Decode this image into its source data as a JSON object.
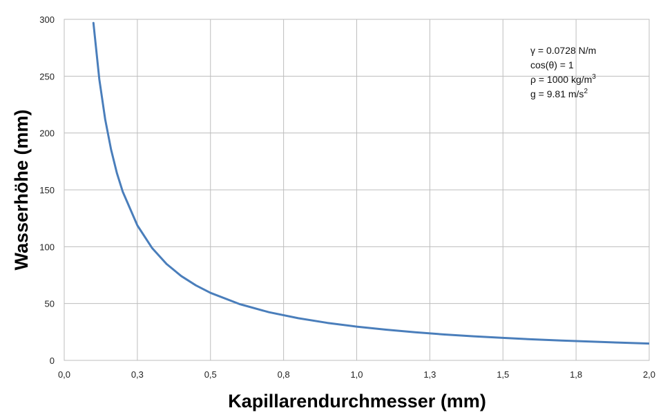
{
  "chart_data": {
    "type": "line",
    "title": "",
    "xlabel": "Kapillarendurchmesser (mm)",
    "ylabel": "Wasserhöhe (mm)",
    "xlim": [
      0,
      2.0
    ],
    "ylim": [
      0,
      300
    ],
    "grid": true,
    "x_ticks": [
      0,
      0.25,
      0.5,
      0.75,
      1.0,
      1.25,
      1.5,
      1.75,
      2.0
    ],
    "x_tick_labels": [
      "0,0",
      "0,3",
      "0,5",
      "0,8",
      "1,0",
      "1,3",
      "1,5",
      "1,8",
      "2,0"
    ],
    "y_ticks": [
      0,
      50,
      100,
      150,
      200,
      250,
      300
    ],
    "y_tick_labels": [
      "0",
      "50",
      "100",
      "150",
      "200",
      "250",
      "300"
    ],
    "series": [
      {
        "color": "#4a7ebb",
        "x": [
          0.1,
          0.12,
          0.14,
          0.16,
          0.18,
          0.2,
          0.25,
          0.3,
          0.35,
          0.4,
          0.45,
          0.5,
          0.6,
          0.7,
          0.8,
          0.9,
          1.0,
          1.1,
          1.2,
          1.3,
          1.4,
          1.5,
          1.6,
          1.7,
          1.8,
          1.9,
          2.0
        ],
        "y": [
          296.8,
          247.3,
          212.0,
          185.5,
          164.9,
          148.4,
          118.7,
          98.9,
          84.8,
          74.2,
          66.0,
          59.4,
          49.5,
          42.4,
          37.1,
          33.0,
          29.7,
          27.0,
          24.7,
          22.8,
          21.2,
          19.8,
          18.5,
          17.5,
          16.5,
          15.6,
          14.8
        ]
      }
    ],
    "annotations": [
      {
        "text": "γ = 0.0728  N/m",
        "position": "top-right"
      },
      {
        "text": "cos(θ) = 1",
        "position": "top-right"
      },
      {
        "text": "ρ = 1000  kg/m",
        "sup": "3",
        "position": "top-right"
      },
      {
        "text": "g = 9.81  m/s",
        "sup": "2",
        "position": "top-right"
      }
    ]
  }
}
